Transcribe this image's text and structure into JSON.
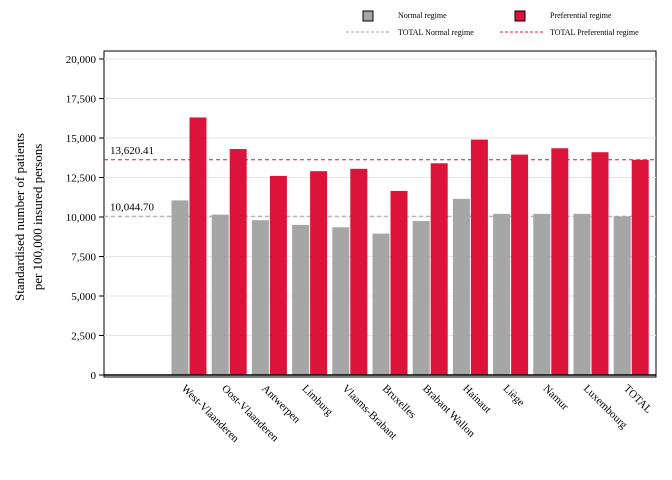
{
  "chart_data": {
    "type": "bar",
    "ylabel_lines": [
      "Standardised number of patients",
      "per 100,000 insured persons"
    ],
    "ylim": [
      0,
      20000
    ],
    "yticks": [
      0,
      2500,
      5000,
      7500,
      10000,
      12500,
      15000,
      17500,
      20000
    ],
    "ytick_labels": [
      "0",
      "2,500",
      "5,000",
      "7,500",
      "10,000",
      "12,500",
      "15,000",
      "17,500",
      "20,000"
    ],
    "grid": true,
    "legend_position": "top",
    "categories": [
      "West-Vlaanderen",
      "Oost-Vlaanderen",
      "Antwerpen",
      "Limburg",
      "Vlaams-Brabant",
      "Bruxelles",
      "Brabant Wallon",
      "Hainaut",
      "Liège",
      "Namur",
      "Luxembourg",
      "TOTAL"
    ],
    "series": [
      {
        "name": "Normal regime",
        "color": "#a6a6a6",
        "values": [
          11050,
          10150,
          9800,
          9500,
          9350,
          8950,
          9750,
          11150,
          10200,
          10200,
          10200,
          10045
        ]
      },
      {
        "name": "Preferential regime",
        "color": "#dc143c",
        "values": [
          16300,
          14300,
          12600,
          12900,
          13050,
          11650,
          13400,
          14900,
          13950,
          14350,
          14100,
          13620
        ]
      }
    ],
    "reference_lines": [
      {
        "name": "TOTAL Normal regime",
        "value": 10044.7,
        "label": "10,044.70",
        "color": "#a6a6a6"
      },
      {
        "name": "TOTAL Preferential regime",
        "value": 13620.41,
        "label": "13,620.41",
        "color": "#dc143c"
      }
    ]
  }
}
